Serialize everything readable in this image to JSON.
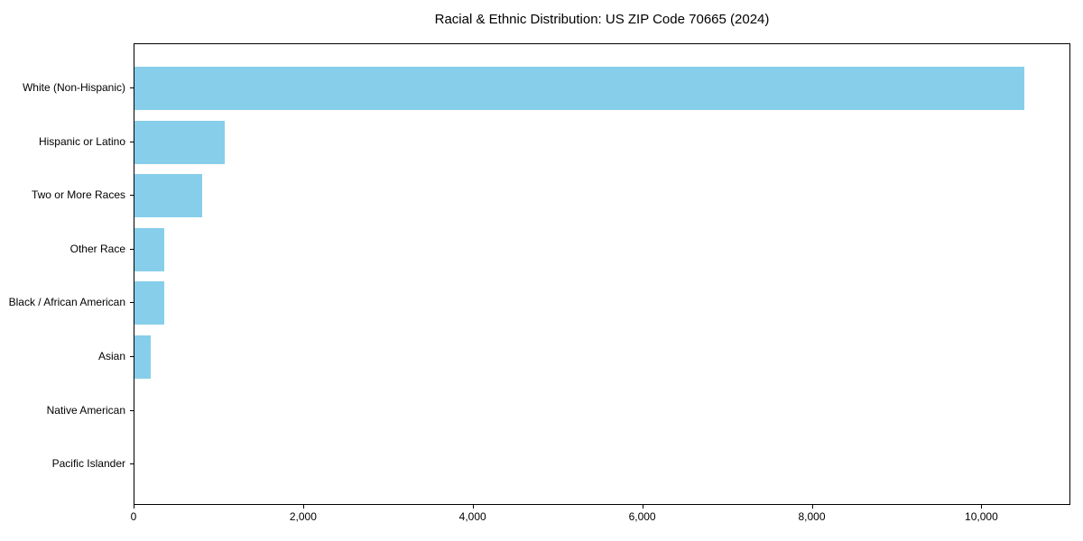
{
  "chart_data": {
    "type": "bar",
    "orientation": "horizontal",
    "title": "Racial & Ethnic Distribution: US ZIP Code 70665 (2024)",
    "categories": [
      "White (Non-Hispanic)",
      "Hispanic or Latino",
      "Two or More Races",
      "Other Race",
      "Black / African American",
      "Asian",
      "Native American",
      "Pacific Islander"
    ],
    "values": [
      10500,
      1060,
      800,
      350,
      348,
      190,
      0,
      0
    ],
    "xlabel": "",
    "ylabel": "",
    "xlim": [
      0,
      11050
    ],
    "xticks": {
      "values": [
        0,
        2000,
        4000,
        6000,
        8000,
        10000
      ],
      "labels": [
        "0",
        "2,000",
        "4,000",
        "6,000",
        "8,000",
        "10,000"
      ]
    },
    "bar_color": "#87CEEB",
    "grid": false,
    "legend": null
  }
}
